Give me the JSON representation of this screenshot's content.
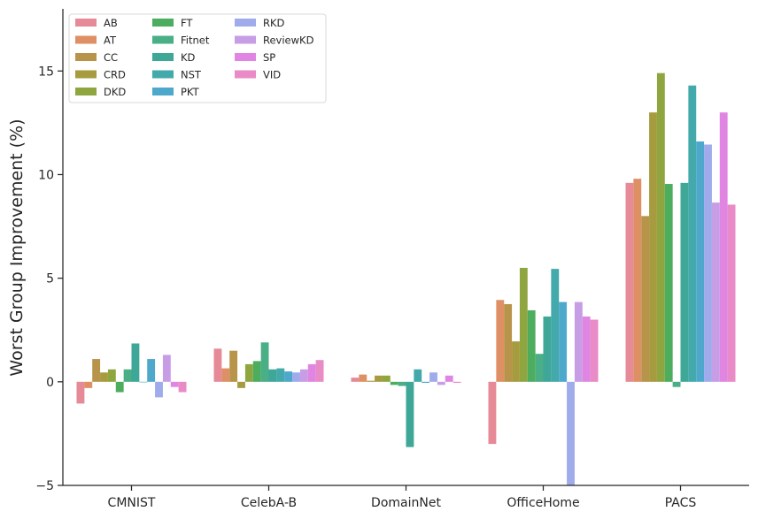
{
  "chart_data": {
    "type": "bar",
    "title": "",
    "xlabel": "",
    "ylabel": "Worst Group Improvement (%)",
    "ylim": [
      -5,
      18
    ],
    "yticks": [
      -5,
      0,
      5,
      10,
      15
    ],
    "ytick_labels": [
      "−5",
      "0",
      "5",
      "10",
      "15"
    ],
    "legend_position": "top-left",
    "legend_columns": 3,
    "categories": [
      "CMNIST",
      "CelebA-B",
      "DomainNet",
      "OfficeHome",
      "PACS"
    ],
    "series": [
      {
        "name": "AB",
        "color": "#e58a96",
        "values": [
          -1.05,
          1.6,
          0.2,
          -3.0,
          9.6
        ]
      },
      {
        "name": "AT",
        "color": "#df8f64",
        "values": [
          -0.3,
          0.65,
          0.35,
          3.95,
          9.8
        ]
      },
      {
        "name": "CC",
        "color": "#b8944a",
        "values": [
          1.1,
          1.5,
          0.05,
          3.75,
          8.0
        ]
      },
      {
        "name": "CRD",
        "color": "#a69b3f",
        "values": [
          0.45,
          -0.3,
          0.3,
          1.95,
          13.0
        ]
      },
      {
        "name": "DKD",
        "color": "#8fa640",
        "values": [
          0.6,
          0.85,
          0.3,
          5.5,
          14.9
        ]
      },
      {
        "name": "FT",
        "color": "#4cad5e",
        "values": [
          -0.5,
          1.0,
          -0.15,
          3.45,
          9.55
        ]
      },
      {
        "name": "Fitnet",
        "color": "#4aae86",
        "values": [
          0.6,
          1.9,
          -0.2,
          1.35,
          -0.25
        ]
      },
      {
        "name": "KD",
        "color": "#3fa797",
        "values": [
          1.85,
          0.6,
          -3.15,
          3.15,
          9.6
        ]
      },
      {
        "name": "NST",
        "color": "#43a9aa",
        "values": [
          0.0,
          0.65,
          0.6,
          5.45,
          14.3
        ]
      },
      {
        "name": "PKT",
        "color": "#4ea8cc",
        "values": [
          1.1,
          0.5,
          -0.05,
          3.85,
          11.6
        ]
      },
      {
        "name": "RKD",
        "color": "#9fabea",
        "values": [
          -0.75,
          0.45,
          0.45,
          -5.0,
          11.45
        ]
      },
      {
        "name": "ReviewKD",
        "color": "#c79de6",
        "values": [
          1.3,
          0.6,
          -0.15,
          3.85,
          8.65
        ]
      },
      {
        "name": "SP",
        "color": "#e086e2",
        "values": [
          -0.25,
          0.85,
          0.3,
          3.15,
          13.0
        ]
      },
      {
        "name": "VID",
        "color": "#e88bc6",
        "values": [
          -0.5,
          1.05,
          -0.05,
          3.0,
          8.55
        ]
      }
    ]
  }
}
